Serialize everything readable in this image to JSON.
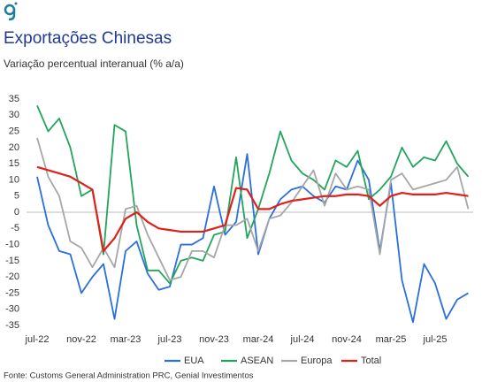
{
  "chart_data": {
    "type": "line",
    "title": "Exportações Chinesas",
    "subtitle": "Variação percentual interanual (% a/a)",
    "source": "Fonte: Customs General Administration PRC, Genial Investimentos",
    "categories": [
      "jul-22",
      null,
      null,
      null,
      "nov-22",
      null,
      null,
      null,
      "mar-23",
      null,
      null,
      null,
      "jul-23",
      null,
      null,
      null,
      "nov-23",
      null,
      null,
      null,
      "mar-24",
      null,
      null,
      null,
      "jul-24",
      null,
      null,
      null,
      "nov-24",
      null,
      null,
      null,
      "mar-25",
      null,
      null,
      null,
      "jul-25",
      null,
      null,
      null
    ],
    "ylim": [
      -35,
      35
    ],
    "yticks": [
      -35,
      -30,
      -25,
      -20,
      -15,
      -10,
      -5,
      0,
      5,
      10,
      15,
      20,
      25,
      30,
      35
    ],
    "series": [
      {
        "name": "EUA",
        "color": "#2a6fdb",
        "values": [
          11,
          -4,
          -12,
          -13,
          -25,
          -20,
          -16,
          -33,
          -12,
          -9,
          -19,
          -24,
          -23,
          -10,
          -10,
          -8,
          8,
          -7,
          -3,
          18,
          -13,
          -2,
          4,
          7,
          8,
          5,
          3,
          8,
          7,
          16,
          10,
          -12,
          9,
          -21,
          -34,
          -16,
          -22,
          -33,
          -27,
          -25
        ]
      },
      {
        "name": "ASEAN",
        "color": "#22a55a",
        "values": [
          33,
          25,
          29,
          20,
          5,
          7,
          -13,
          27,
          25,
          -4,
          -18,
          -18,
          -22,
          -15,
          -14,
          -15,
          -7,
          -6,
          17,
          -8,
          1,
          12,
          25,
          16,
          12,
          10,
          7,
          16,
          14,
          19,
          4,
          7,
          11,
          20,
          14,
          17,
          16,
          22,
          15,
          11
        ]
      },
      {
        "name": "Europa",
        "color": "#a6a6a6",
        "values": [
          23,
          11,
          5,
          -9,
          -11,
          -17,
          -11,
          -17,
          1,
          2,
          -7,
          -14,
          -21,
          -20,
          -12,
          -12,
          -14,
          -4,
          -4,
          -2,
          -12,
          -2,
          -1,
          3,
          8,
          13,
          2,
          12,
          7,
          8,
          7,
          -13,
          10,
          12,
          7,
          8,
          9,
          10,
          14,
          1
        ]
      },
      {
        "name": "Total",
        "color": "#e0201b",
        "values": [
          14,
          13,
          12,
          11,
          9,
          7,
          -12,
          -8,
          -2,
          0,
          -3,
          -5,
          -5.5,
          -6,
          -6,
          -6,
          -5,
          -4,
          7.5,
          7,
          1,
          1,
          2.5,
          3.5,
          4,
          4.5,
          5,
          5,
          5.5,
          5.5,
          5,
          2,
          5,
          6,
          5.5,
          5.5,
          5.5,
          6,
          5.5,
          5
        ]
      }
    ],
    "legend": "bottom"
  }
}
